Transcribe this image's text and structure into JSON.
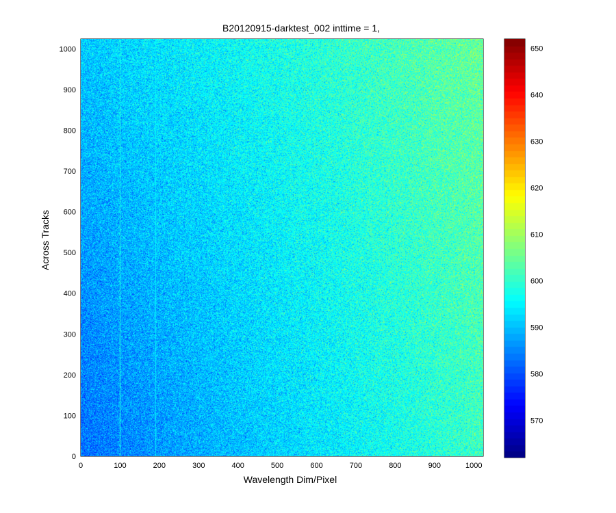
{
  "chart_data": {
    "type": "heatmap",
    "title": "B20120915-darktest_002 inttime = 1,",
    "xlabel": "Wavelength Dim/Pixel",
    "ylabel": "Across Tracks",
    "xlim": [
      0,
      1024
    ],
    "ylim": [
      0,
      1024
    ],
    "x_ticks": [
      0,
      100,
      200,
      300,
      400,
      500,
      600,
      700,
      800,
      900,
      1000
    ],
    "y_ticks": [
      0,
      100,
      200,
      300,
      400,
      500,
      600,
      700,
      800,
      900,
      1000
    ],
    "colormap": "jet",
    "color_range": [
      562,
      652
    ],
    "colorbar_ticks": [
      570,
      580,
      590,
      600,
      610,
      620,
      630,
      640,
      650
    ],
    "grid": false,
    "value_trend": {
      "corner_values": {
        "x0_y0": 583,
        "x1024_y0": 601,
        "x0_y1024": 591,
        "x1024_y1024": 605
      },
      "noise_amplitude": 6
    },
    "column_features": [
      {
        "x": 100,
        "value": 598
      },
      {
        "x": 190,
        "value": 595
      }
    ]
  }
}
